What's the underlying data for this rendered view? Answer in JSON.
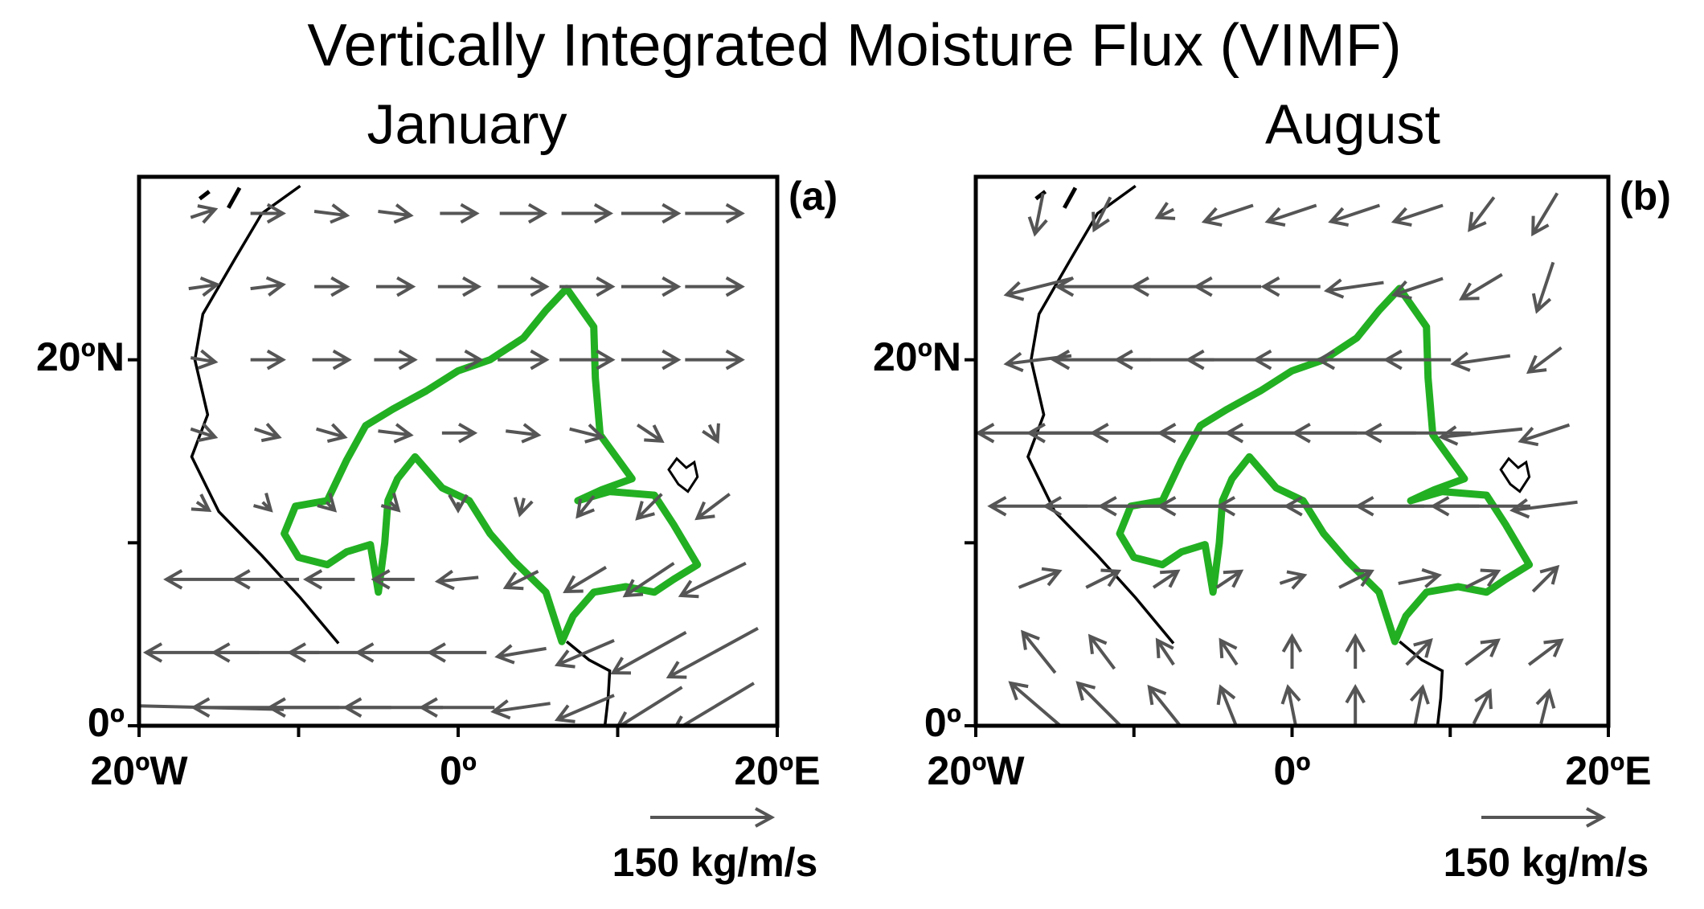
{
  "title": "Vertically Integrated Moisture Flux (VIMF)",
  "panels": [
    {
      "title": "January",
      "label": "(a)",
      "xlim": [
        -20,
        20
      ],
      "ylim": [
        0,
        30
      ],
      "xticks": [
        {
          "value": -20,
          "label": "20ºW"
        },
        {
          "value": -10,
          "label": null
        },
        {
          "value": 0,
          "label": "0º"
        },
        {
          "value": 10,
          "label": null
        },
        {
          "value": 20,
          "label": "20ºE"
        }
      ],
      "yticks": [
        {
          "value": 0,
          "label": "0º"
        },
        {
          "value": 10,
          "label": null
        },
        {
          "value": 20,
          "label": "20ºN"
        }
      ],
      "lons": [
        -16,
        -12,
        -8,
        -4,
        0,
        4,
        8,
        12,
        16
      ],
      "lats": [
        28,
        24,
        20,
        16,
        12,
        8,
        4,
        1
      ],
      "u": [
        [
          30,
          40,
          40,
          40,
          45,
          55,
          60,
          70,
          70
        ],
        [
          35,
          40,
          40,
          45,
          50,
          60,
          65,
          70,
          70
        ],
        [
          30,
          40,
          45,
          50,
          55,
          60,
          65,
          70,
          70
        ],
        [
          30,
          30,
          35,
          40,
          40,
          40,
          40,
          30,
          10
        ],
        [
          15,
          10,
          10,
          10,
          0,
          -5,
          -20,
          -30,
          -40
        ],
        [
          -90,
          -80,
          -60,
          -50,
          -50,
          -40,
          -50,
          -60,
          -80
        ],
        [
          -140,
          -130,
          -100,
          -90,
          -70,
          -60,
          -70,
          -90,
          -110
        ],
        [
          -200,
          -180,
          -150,
          -120,
          -90,
          -70,
          -70,
          -80,
          -100
        ]
      ],
      "v": [
        [
          10,
          0,
          -5,
          -5,
          0,
          0,
          0,
          0,
          0
        ],
        [
          5,
          5,
          0,
          0,
          0,
          0,
          0,
          0,
          0
        ],
        [
          -5,
          0,
          0,
          0,
          0,
          0,
          0,
          0,
          0
        ],
        [
          -10,
          -10,
          -10,
          -5,
          0,
          -5,
          -10,
          -20,
          -20
        ],
        [
          -10,
          -10,
          -10,
          -10,
          -10,
          -20,
          -25,
          -30,
          -30
        ],
        [
          0,
          0,
          0,
          0,
          -5,
          -20,
          -30,
          -40,
          -40
        ],
        [
          0,
          0,
          0,
          0,
          0,
          -10,
          -30,
          -50,
          -60
        ],
        [
          5,
          0,
          0,
          0,
          0,
          -10,
          -30,
          -50,
          -60
        ]
      ],
      "reference": {
        "value": 150,
        "label": "150 kg/m/s"
      }
    },
    {
      "title": "August",
      "label": "(b)",
      "xlim": [
        -20,
        20
      ],
      "ylim": [
        0,
        30
      ],
      "xticks": [
        {
          "value": -20,
          "label": "20ºW"
        },
        {
          "value": -10,
          "label": null
        },
        {
          "value": 0,
          "label": "0º"
        },
        {
          "value": 10,
          "label": null
        },
        {
          "value": 20,
          "label": "20ºE"
        }
      ],
      "yticks": [
        {
          "value": 0,
          "label": "0º"
        },
        {
          "value": 10,
          "label": null
        },
        {
          "value": 20,
          "label": "20ºN"
        }
      ],
      "lons": [
        -16,
        -12,
        -8,
        -4,
        0,
        4,
        8,
        12,
        16
      ],
      "lats": [
        28,
        24,
        20,
        16,
        12,
        8,
        4,
        1
      ],
      "u": [
        [
          -10,
          -20,
          -20,
          -60,
          -60,
          -60,
          -60,
          -30,
          -30
        ],
        [
          -80,
          -110,
          -80,
          -80,
          -70,
          -70,
          -60,
          -50,
          -20
        ],
        [
          -80,
          -120,
          -120,
          -100,
          -90,
          -90,
          -80,
          -70,
          -40
        ],
        [
          -150,
          -180,
          -180,
          -170,
          -160,
          -150,
          -130,
          -100,
          -60
        ],
        [
          -120,
          -140,
          -160,
          -170,
          -180,
          -170,
          -150,
          -120,
          -80
        ],
        [
          50,
          40,
          30,
          30,
          30,
          40,
          50,
          40,
          30
        ],
        [
          -40,
          -30,
          -20,
          -20,
          0,
          0,
          30,
          40,
          40
        ],
        [
          -70,
          -60,
          -40,
          -20,
          -10,
          0,
          10,
          20,
          10
        ]
      ],
      "v": [
        [
          -50,
          -40,
          -10,
          -20,
          -20,
          -20,
          -20,
          -40,
          -50
        ],
        [
          -20,
          0,
          0,
          0,
          0,
          -10,
          -20,
          -30,
          -60
        ],
        [
          -10,
          0,
          0,
          0,
          0,
          0,
          0,
          -10,
          -30
        ],
        [
          0,
          0,
          0,
          0,
          0,
          0,
          0,
          -10,
          -20
        ],
        [
          0,
          0,
          0,
          0,
          0,
          0,
          0,
          0,
          -10
        ],
        [
          20,
          20,
          20,
          20,
          10,
          20,
          10,
          20,
          30
        ],
        [
          50,
          40,
          30,
          30,
          40,
          40,
          30,
          30,
          30
        ],
        [
          60,
          60,
          50,
          50,
          50,
          50,
          50,
          40,
          40
        ]
      ],
      "reference": {
        "value": 150,
        "label": "150 kg/m/s"
      }
    }
  ]
}
